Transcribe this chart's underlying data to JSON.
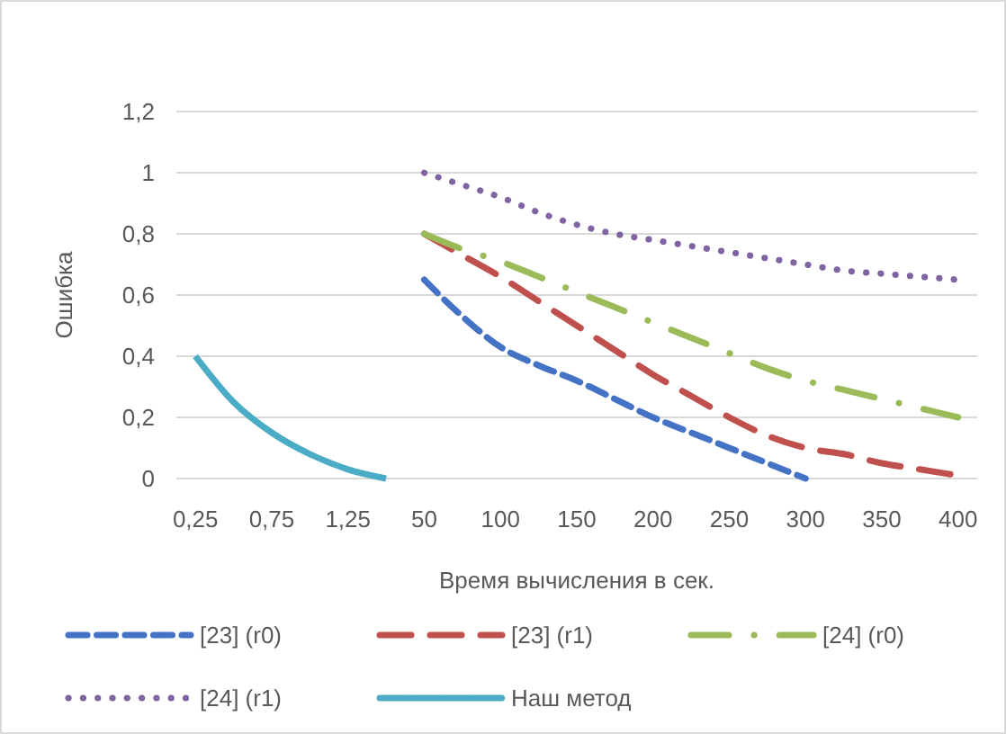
{
  "chart_data": {
    "type": "line",
    "xlabel": "Время вычисления в сек.",
    "ylabel": "Ошибка",
    "categories": [
      "0,25",
      null,
      "0,75",
      null,
      "1,25",
      null,
      "50",
      null,
      "100",
      null,
      "150",
      null,
      "200",
      null,
      "250",
      null,
      "300",
      null,
      "350",
      null,
      "400"
    ],
    "series": [
      {
        "name": "[23] (r0)",
        "color": "#4472c4",
        "line_style": "dashed",
        "values": [
          null,
          null,
          null,
          null,
          null,
          null,
          0.65,
          0.53,
          0.43,
          0.37,
          0.32,
          0.26,
          0.2,
          0.15,
          0.1,
          0.05,
          0,
          null,
          null,
          null,
          null
        ]
      },
      {
        "name": "[23] (r1)",
        "color": "#c0504d",
        "line_style": "dashed",
        "values": [
          null,
          null,
          null,
          null,
          null,
          null,
          0.8,
          0.73,
          0.66,
          0.58,
          0.5,
          0.42,
          0.34,
          0.27,
          0.2,
          0.14,
          0.1,
          0.08,
          0.05,
          0.03,
          0.01
        ]
      },
      {
        "name": "[24] (r0)",
        "color": "#9bbb59",
        "line_style": "dashdot",
        "values": [
          null,
          null,
          null,
          null,
          null,
          null,
          0.8,
          0.75,
          0.71,
          0.66,
          0.61,
          0.56,
          0.51,
          0.46,
          0.41,
          0.36,
          0.32,
          0.29,
          0.26,
          0.23,
          0.2
        ]
      },
      {
        "name": "[24] (r1)",
        "color": "#8064a2",
        "line_style": "dotted",
        "values": [
          null,
          null,
          null,
          null,
          null,
          null,
          1,
          0.96,
          0.92,
          0.87,
          0.83,
          0.8,
          0.78,
          0.76,
          0.74,
          0.72,
          0.7,
          0.68,
          0.67,
          0.66,
          0.65
        ]
      },
      {
        "name": "Наш метод",
        "color": "#4bacc6",
        "line_style": "solid",
        "values": [
          0.4,
          0.25,
          0.15,
          0.08,
          0.03,
          0,
          null,
          null,
          null,
          null,
          null,
          null,
          null,
          null,
          null,
          null,
          null,
          null,
          null,
          null,
          null
        ]
      }
    ],
    "ylim": [
      0,
      1.2
    ],
    "yticks": [
      0,
      {
        "value": 0.2,
        "label": "0,2"
      },
      {
        "value": 0.4,
        "label": "0,4"
      },
      {
        "value": 0.6,
        "label": "0,6"
      },
      {
        "value": 0.8,
        "label": "0,8"
      },
      1,
      {
        "value": 1.2,
        "label": "1,2"
      }
    ],
    "grid": "y",
    "legend": "bottom",
    "marker": "none"
  }
}
